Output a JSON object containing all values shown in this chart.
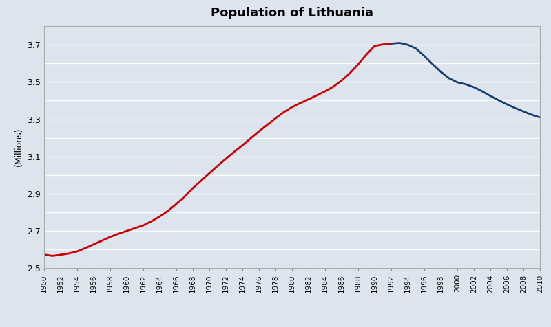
{
  "title": "Population of Lithuania",
  "ylabel": "(Millions)",
  "xlim": [
    1950,
    2010
  ],
  "ylim": [
    2.5,
    3.8
  ],
  "yticks": [
    2.5,
    2.6,
    2.7,
    2.8,
    2.9,
    3.0,
    3.1,
    3.2,
    3.3,
    3.4,
    3.5,
    3.6,
    3.7,
    3.8
  ],
  "ytick_labels": [
    "2.5",
    "",
    "2.7",
    "",
    "2.9",
    "",
    "3.1",
    "",
    "3.3",
    "",
    "3.5",
    "",
    "3.7",
    ""
  ],
  "xticks": [
    1950,
    1952,
    1954,
    1956,
    1958,
    1960,
    1962,
    1964,
    1966,
    1968,
    1970,
    1972,
    1974,
    1976,
    1978,
    1980,
    1982,
    1984,
    1986,
    1988,
    1990,
    1992,
    1994,
    1996,
    1998,
    2000,
    2002,
    2004,
    2006,
    2008,
    2010
  ],
  "background_color": "#dce4ed",
  "plot_bg_color": "#dce4ed",
  "grid_color": "#ffffff",
  "red_color": "#cc0000",
  "blue_color": "#1a3d6e",
  "red_data": {
    "years": [
      1950,
      1951,
      1952,
      1953,
      1954,
      1955,
      1956,
      1957,
      1958,
      1959,
      1960,
      1961,
      1962,
      1963,
      1964,
      1965,
      1966,
      1967,
      1968,
      1969,
      1970,
      1971,
      1972,
      1973,
      1974,
      1975,
      1976,
      1977,
      1978,
      1979,
      1980,
      1981,
      1982,
      1983,
      1984,
      1985,
      1986,
      1987,
      1988,
      1989,
      1990,
      1991,
      1992
    ],
    "values": [
      2.573,
      2.566,
      2.572,
      2.579,
      2.59,
      2.608,
      2.628,
      2.648,
      2.668,
      2.685,
      2.7,
      2.715,
      2.73,
      2.752,
      2.778,
      2.808,
      2.845,
      2.885,
      2.93,
      2.97,
      3.01,
      3.05,
      3.088,
      3.125,
      3.16,
      3.198,
      3.235,
      3.27,
      3.305,
      3.338,
      3.365,
      3.387,
      3.407,
      3.428,
      3.45,
      3.475,
      3.508,
      3.548,
      3.595,
      3.648,
      3.694,
      3.702,
      3.706
    ]
  },
  "blue_data": {
    "years": [
      1992,
      1993,
      1994,
      1995,
      1996,
      1997,
      1998,
      1999,
      2000,
      2001,
      2002,
      2003,
      2004,
      2005,
      2006,
      2007,
      2008,
      2009,
      2010
    ],
    "values": [
      3.706,
      3.71,
      3.7,
      3.68,
      3.64,
      3.596,
      3.555,
      3.52,
      3.498,
      3.488,
      3.472,
      3.45,
      3.425,
      3.402,
      3.38,
      3.36,
      3.342,
      3.324,
      3.31
    ]
  }
}
